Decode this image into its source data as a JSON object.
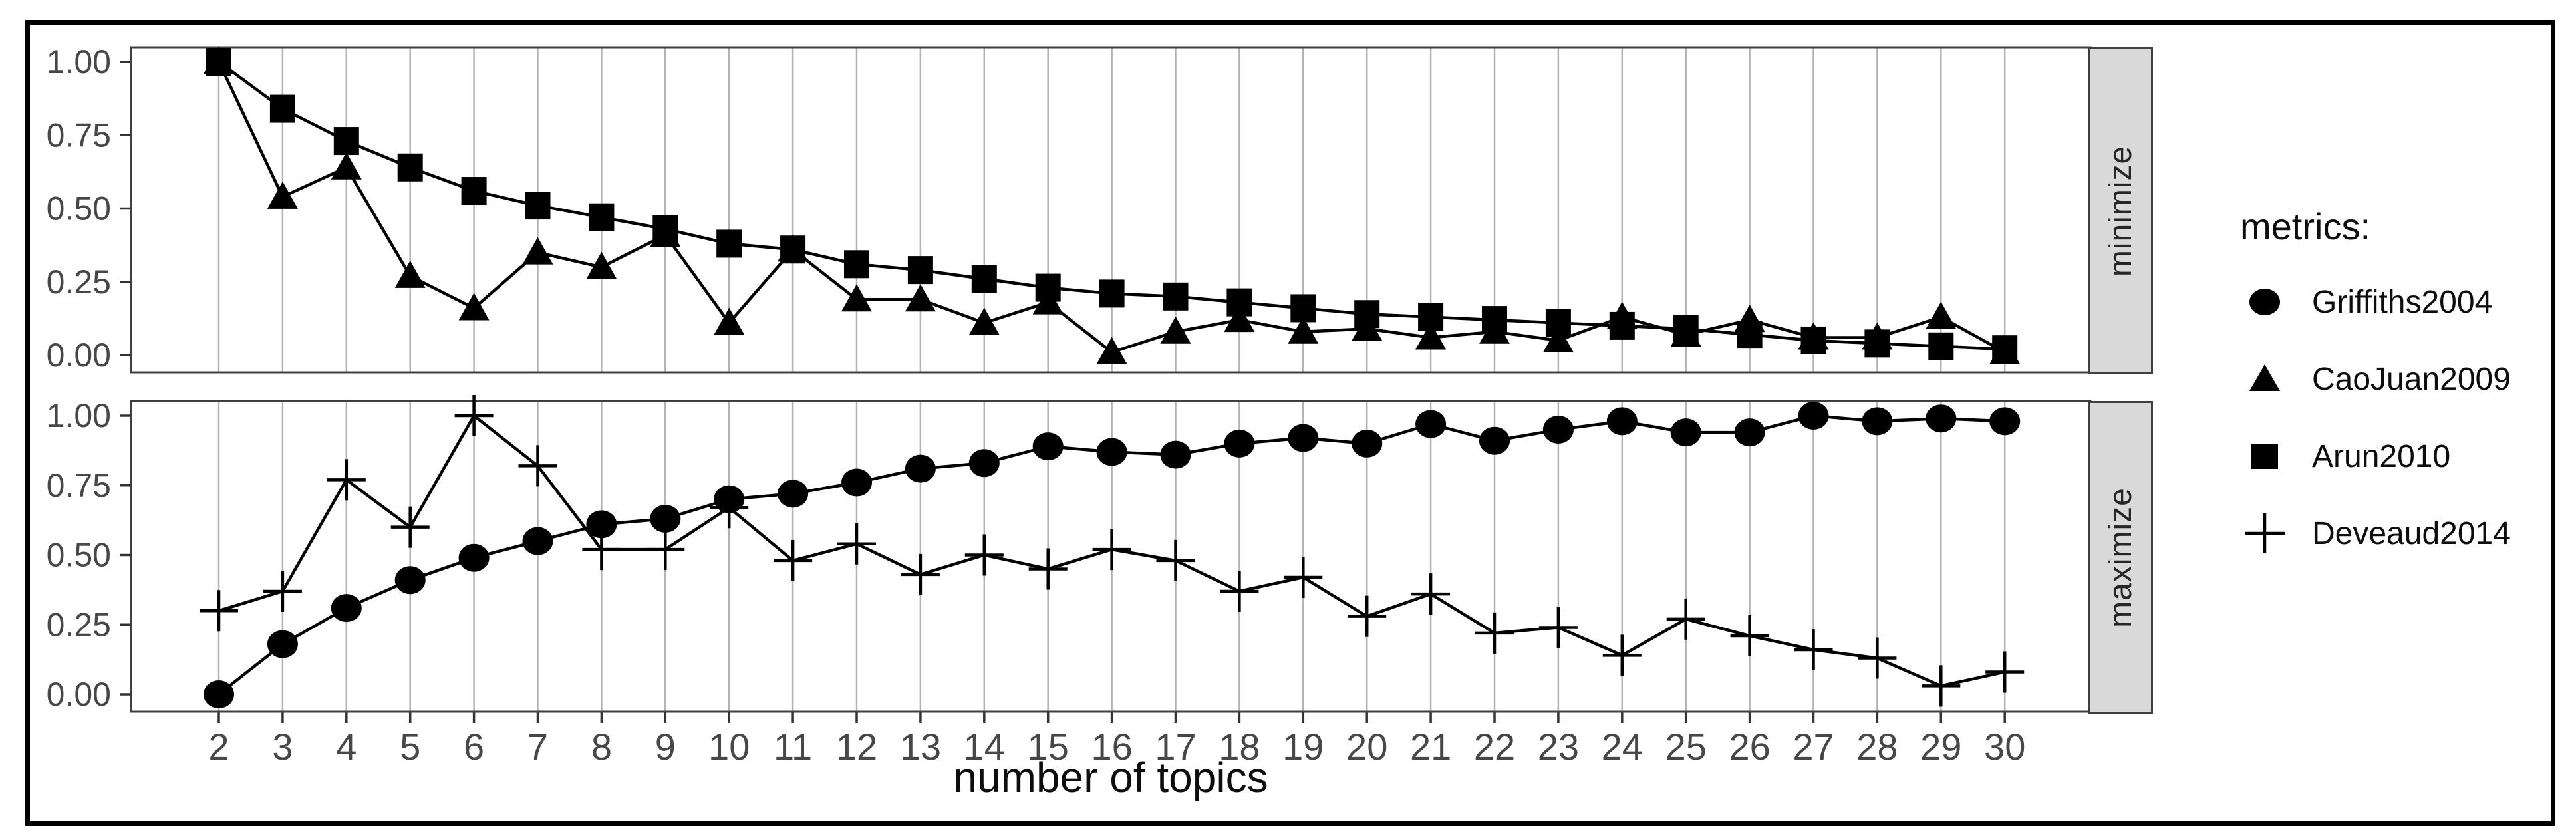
{
  "figure": {
    "background": "#ffffff",
    "border_color": "#000000"
  },
  "chart_data": {
    "type": "line",
    "title": "",
    "xlabel": "number of topics",
    "ylabel": "",
    "x": [
      2,
      3,
      4,
      5,
      6,
      7,
      8,
      9,
      10,
      11,
      12,
      13,
      14,
      15,
      16,
      17,
      18,
      19,
      20,
      21,
      22,
      23,
      24,
      25,
      26,
      27,
      28,
      29,
      30
    ],
    "x_tick_labels": [
      "2",
      "3",
      "4",
      "5",
      "6",
      "7",
      "8",
      "9",
      "10",
      "11",
      "12",
      "13",
      "14",
      "15",
      "16",
      "17",
      "18",
      "19",
      "20",
      "21",
      "22",
      "23",
      "24",
      "25",
      "26",
      "27",
      "28",
      "29",
      "30"
    ],
    "y_tick_labels": [
      "1.00",
      "0.75",
      "0.50",
      "0.25",
      "0.00"
    ],
    "y_tick_values": [
      1.0,
      0.75,
      0.5,
      0.25,
      0.0
    ],
    "ylim": [
      0,
      1
    ],
    "grid": "vertical-only",
    "panels": [
      {
        "strip": "minimize",
        "series": [
          {
            "name": "CaoJuan2009",
            "marker": "triangle",
            "values": [
              1.0,
              0.54,
              0.64,
              0.27,
              0.16,
              0.35,
              0.3,
              0.41,
              0.11,
              0.36,
              0.19,
              0.19,
              0.11,
              0.18,
              0.01,
              0.08,
              0.12,
              0.08,
              0.09,
              0.06,
              0.08,
              0.05,
              0.13,
              0.07,
              0.12,
              0.06,
              0.06,
              0.13,
              0.01
            ]
          },
          {
            "name": "Arun2010",
            "marker": "square",
            "values": [
              1.0,
              0.84,
              0.73,
              0.64,
              0.56,
              0.51,
              0.47,
              0.43,
              0.38,
              0.36,
              0.31,
              0.29,
              0.26,
              0.23,
              0.21,
              0.2,
              0.18,
              0.16,
              0.14,
              0.13,
              0.12,
              0.11,
              0.1,
              0.09,
              0.07,
              0.05,
              0.04,
              0.03,
              0.02
            ]
          }
        ]
      },
      {
        "strip": "maximize",
        "series": [
          {
            "name": "Griffiths2004",
            "marker": "circle",
            "values": [
              0.0,
              0.18,
              0.31,
              0.41,
              0.49,
              0.55,
              0.61,
              0.63,
              0.7,
              0.72,
              0.76,
              0.81,
              0.83,
              0.89,
              0.87,
              0.86,
              0.9,
              0.92,
              0.9,
              0.97,
              0.91,
              0.95,
              0.98,
              0.94,
              0.94,
              1.0,
              0.98,
              0.99,
              0.98
            ]
          },
          {
            "name": "Deveaud2014",
            "marker": "plus",
            "values": [
              0.3,
              0.37,
              0.77,
              0.6,
              1.0,
              0.82,
              0.52,
              0.52,
              0.67,
              0.48,
              0.54,
              0.43,
              0.5,
              0.45,
              0.52,
              0.48,
              0.37,
              0.42,
              0.28,
              0.36,
              0.22,
              0.24,
              0.14,
              0.27,
              0.21,
              0.16,
              0.13,
              0.03,
              0.08
            ]
          }
        ]
      }
    ],
    "legend": {
      "title": "metrics:",
      "position": "right",
      "entries": [
        {
          "label": "Griffiths2004",
          "marker": "circle"
        },
        {
          "label": "CaoJuan2009",
          "marker": "triangle"
        },
        {
          "label": "Arun2010",
          "marker": "square"
        },
        {
          "label": "Deveaud2014",
          "marker": "plus"
        }
      ]
    },
    "colors": {
      "series": "#000000",
      "gridline": "#b3b3b3",
      "panel_border": "#404040",
      "strip_background": "#d9d9d9",
      "axis_text": "#474747",
      "title_text": "#0d0d0d"
    }
  }
}
